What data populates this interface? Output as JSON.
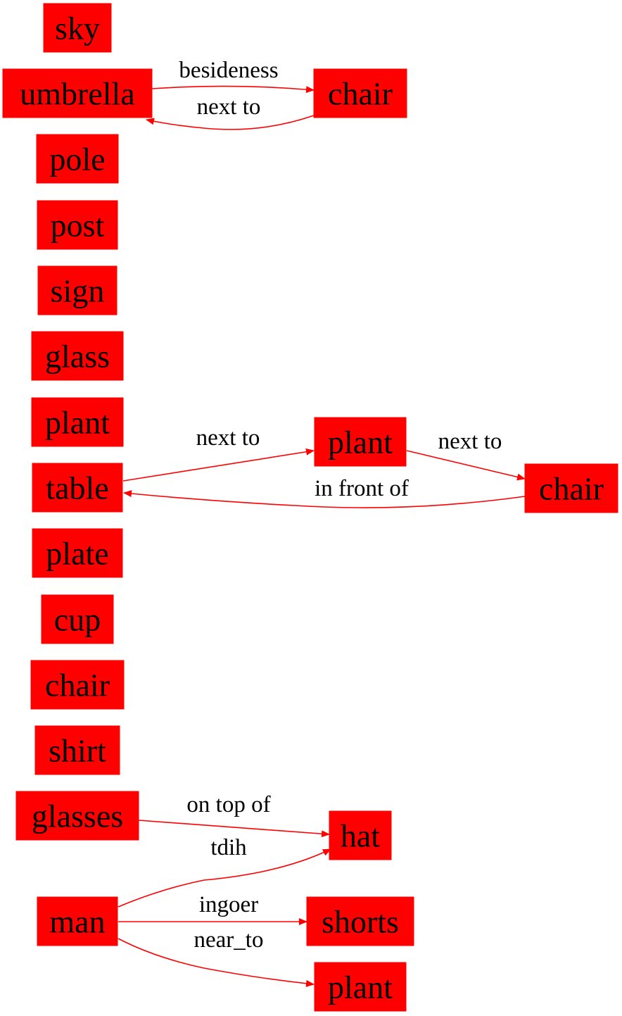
{
  "colors": {
    "node_fill": "#ff0000",
    "edge": "#ff0000",
    "text": "#000000"
  },
  "nodes": {
    "sky": "sky",
    "umbrella": "umbrella",
    "chair_top": "chair",
    "pole": "pole",
    "post": "post",
    "sign": "sign",
    "glass": "glass",
    "plant_left": "plant",
    "plant_mid": "plant",
    "table": "table",
    "chair_right": "chair",
    "plate": "plate",
    "cup": "cup",
    "chair_left": "chair",
    "shirt": "shirt",
    "glasses": "glasses",
    "hat": "hat",
    "man": "man",
    "shorts": "shorts",
    "plant_bottom": "plant"
  },
  "edges": [
    {
      "from": "umbrella",
      "to": "chair_top",
      "label": "besideness"
    },
    {
      "from": "chair_top",
      "to": "umbrella",
      "label": "next to"
    },
    {
      "from": "table",
      "to": "plant_mid",
      "label": "next to"
    },
    {
      "from": "plant_mid",
      "to": "chair_right",
      "label": "next to"
    },
    {
      "from": "chair_right",
      "to": "table",
      "label": "in front of"
    },
    {
      "from": "glasses",
      "to": "hat",
      "label": "on top of"
    },
    {
      "from": "man",
      "to": "hat",
      "label": "tdih"
    },
    {
      "from": "man",
      "to": "shorts",
      "label": "ingoer"
    },
    {
      "from": "man",
      "to": "plant_bottom",
      "label": "near_to"
    }
  ]
}
